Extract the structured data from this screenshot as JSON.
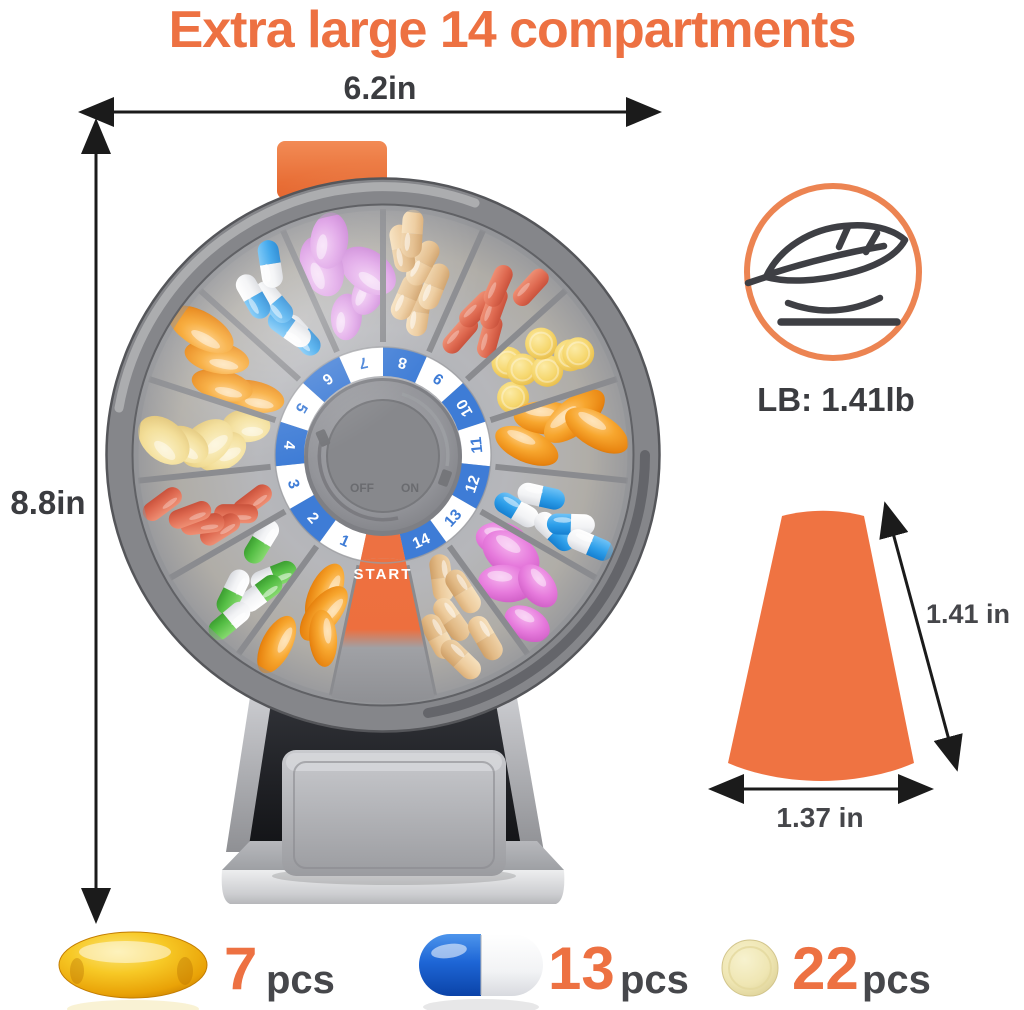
{
  "title": "Extra large 14 compartments",
  "colors": {
    "orange": "#ED7142",
    "ring_blue": "#3E7CD6",
    "text_dark": "#3B3C40",
    "pcs_gray": "#46474B"
  },
  "dimensions": {
    "width": "6.2in",
    "height": "8.8in"
  },
  "weight": {
    "label": "LB: 1.41lb",
    "icon": "feather-icon"
  },
  "compartment_size": {
    "depth": "1.41 in",
    "width": "1.37 in"
  },
  "wheel": {
    "start_label": "START",
    "hub_labels": {
      "off": "OFF",
      "on": "ON"
    },
    "compartments": [
      {
        "num": 1,
        "pill": "orange-softgel"
      },
      {
        "num": 2,
        "pill": "green-white-capsule"
      },
      {
        "num": 3,
        "pill": "salmon-tablet"
      },
      {
        "num": 4,
        "pill": "pale-yellow-oval"
      },
      {
        "num": 5,
        "pill": "orange-softgel"
      },
      {
        "num": 6,
        "pill": "blue-white-capsule"
      },
      {
        "num": 7,
        "pill": "orchid-oval"
      },
      {
        "num": 8,
        "pill": "tan-capsule"
      },
      {
        "num": 9,
        "pill": "salmon-tablet"
      },
      {
        "num": 10,
        "pill": "yellow-round"
      },
      {
        "num": 11,
        "pill": "orange-softgel"
      },
      {
        "num": 12,
        "pill": "blue-white-capsule"
      },
      {
        "num": 13,
        "pill": "magenta-oval"
      },
      {
        "num": 14,
        "pill": "tan-capsule"
      }
    ]
  },
  "pill_colors": {
    "orange_softgel": "#F7A62E",
    "green_capsule": "#55BE45",
    "blue_capsule": "#2E9FEA",
    "salmon_tablet": "#DE6950",
    "pale_yellow_oval": "#F3DE97",
    "orchid_oval": "#DE9FE6",
    "magenta_oval": "#E67ADC",
    "tan_capsule": "#EDCB9C",
    "yellow_round": "#F6D76E",
    "cream_tablet": "#EFE6B3"
  },
  "capacity": [
    {
      "pill": "yellow-softgel",
      "count": "7",
      "unit": "pcs"
    },
    {
      "pill": "blue-white-capsule",
      "count": "13",
      "unit": "pcs"
    },
    {
      "pill": "cream-round-tablet",
      "count": "22",
      "unit": "pcs"
    }
  ]
}
